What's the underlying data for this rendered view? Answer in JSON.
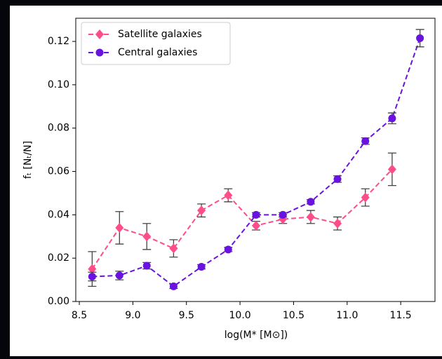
{
  "chart_data": {
    "type": "errorbar",
    "xlabel": "log(M* [M⊙])",
    "ylabel": "fₜ [Nₜ/N]",
    "xlim": [
      8.467,
      11.82
    ],
    "ylim": [
      0,
      0.1307
    ],
    "xticks": [
      8.5,
      {
        "value": 9.0,
        "label": "9.0"
      },
      9.5,
      {
        "value": 10.0,
        "label": "10.0"
      },
      10.5,
      {
        "value": 11.0,
        "label": "11.0"
      },
      11.5
    ],
    "yticks": [
      {
        "value": 0,
        "label": "0.00"
      },
      0.02,
      0.04,
      0.06,
      0.08,
      {
        "value": 0.1,
        "label": "0.10"
      },
      0.12
    ],
    "legend": "upper left",
    "series": [
      {
        "name": "Satellite galaxies",
        "color": "#ff4c8b",
        "marker": "diamond",
        "x": [
          8.62,
          8.875,
          9.13,
          9.38,
          9.64,
          9.89,
          10.15,
          10.4,
          10.66,
          10.91,
          11.17,
          11.42
        ],
        "values": [
          0.015,
          0.034,
          0.03,
          0.0245,
          0.042,
          0.049,
          0.035,
          0.038,
          0.039,
          0.036,
          0.048,
          0.061
        ],
        "errors": [
          0.008,
          0.0075,
          0.006,
          0.004,
          0.003,
          0.003,
          0.002,
          0.002,
          0.003,
          0.003,
          0.004,
          0.0075
        ]
      },
      {
        "name": "Central galaxies",
        "color": "#6a12e0",
        "marker": "circle",
        "x": [
          8.62,
          8.875,
          9.13,
          9.38,
          9.64,
          9.89,
          10.15,
          10.4,
          10.66,
          10.91,
          11.17,
          11.42,
          11.68
        ],
        "values": [
          0.0115,
          0.012,
          0.0165,
          0.007,
          0.016,
          0.024,
          0.04,
          0.04,
          0.046,
          0.0565,
          0.074,
          0.0845,
          0.1215
        ],
        "errors": [
          0.002,
          0.002,
          0.0015,
          0.001,
          0.001,
          0.001,
          0.001,
          0.001,
          0.001,
          0.0015,
          0.0015,
          0.0025,
          0.004
        ]
      }
    ]
  }
}
